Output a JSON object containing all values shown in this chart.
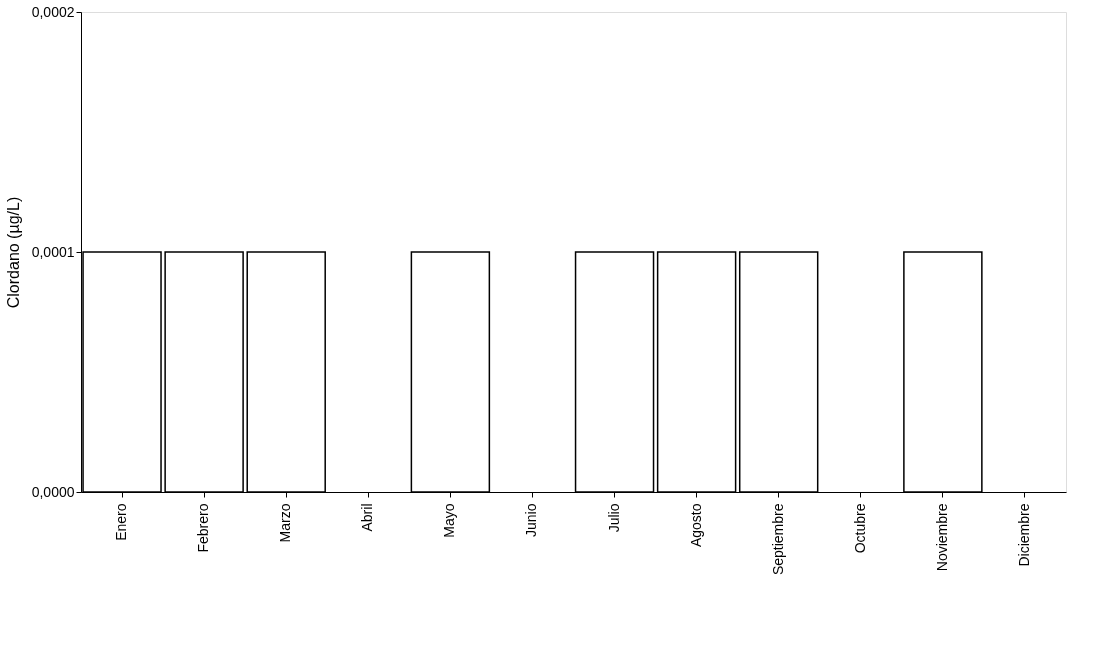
{
  "chart_data": {
    "type": "bar",
    "ylabel": "Clordano (µg/L)",
    "categories": [
      "Enero",
      "Febrero",
      "Marzo",
      "Abril",
      "Mayo",
      "Junio",
      "Julio",
      "Agosto",
      "Septiembre",
      "Octubre",
      "Noviembre",
      "Diciembre"
    ],
    "values": [
      0.0001,
      0.0001,
      0.0001,
      null,
      0.0001,
      null,
      0.0001,
      0.0001,
      0.0001,
      null,
      0.0001,
      null
    ],
    "color": "#ffffff",
    "ylim": [
      0,
      0.0002
    ],
    "yticks": [
      {
        "value": 0,
        "label": "0,0000"
      },
      {
        "value": 0.0001,
        "label": "0,0001"
      },
      {
        "value": 0.0002,
        "label": "0,0002"
      }
    ],
    "grid": false
  }
}
